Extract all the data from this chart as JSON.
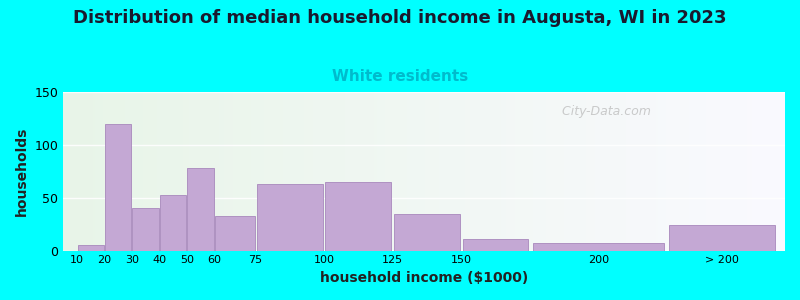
{
  "title": "Distribution of median household income in Augusta, WI in 2023",
  "subtitle": "White residents",
  "xlabel": "household income ($1000)",
  "ylabel": "households",
  "bar_color": "#C4A8D4",
  "bar_edge_color": "#A888BC",
  "background_outer": "#00FFFF",
  "ylim": [
    0,
    150
  ],
  "yticks": [
    0,
    50,
    100,
    150
  ],
  "values": [
    5,
    120,
    40,
    53,
    78,
    33,
    63,
    65,
    35,
    11,
    7,
    24
  ],
  "x_edges": [
    10,
    20,
    30,
    40,
    50,
    60,
    75,
    100,
    125,
    150,
    175,
    225,
    265
  ],
  "tick_positions": [
    10,
    20,
    30,
    40,
    50,
    60,
    75,
    100,
    125,
    150,
    200,
    245
  ],
  "tick_labels": [
    "10",
    "20",
    "30",
    "40",
    "50",
    "60",
    "75",
    "100",
    "125",
    "150",
    "200",
    "> 200"
  ],
  "xlim": [
    5,
    268
  ],
  "title_fontsize": 13,
  "subtitle_fontsize": 11,
  "subtitle_color": "#00BBCC",
  "axis_label_fontsize": 10,
  "watermark": "  City-Data.com"
}
